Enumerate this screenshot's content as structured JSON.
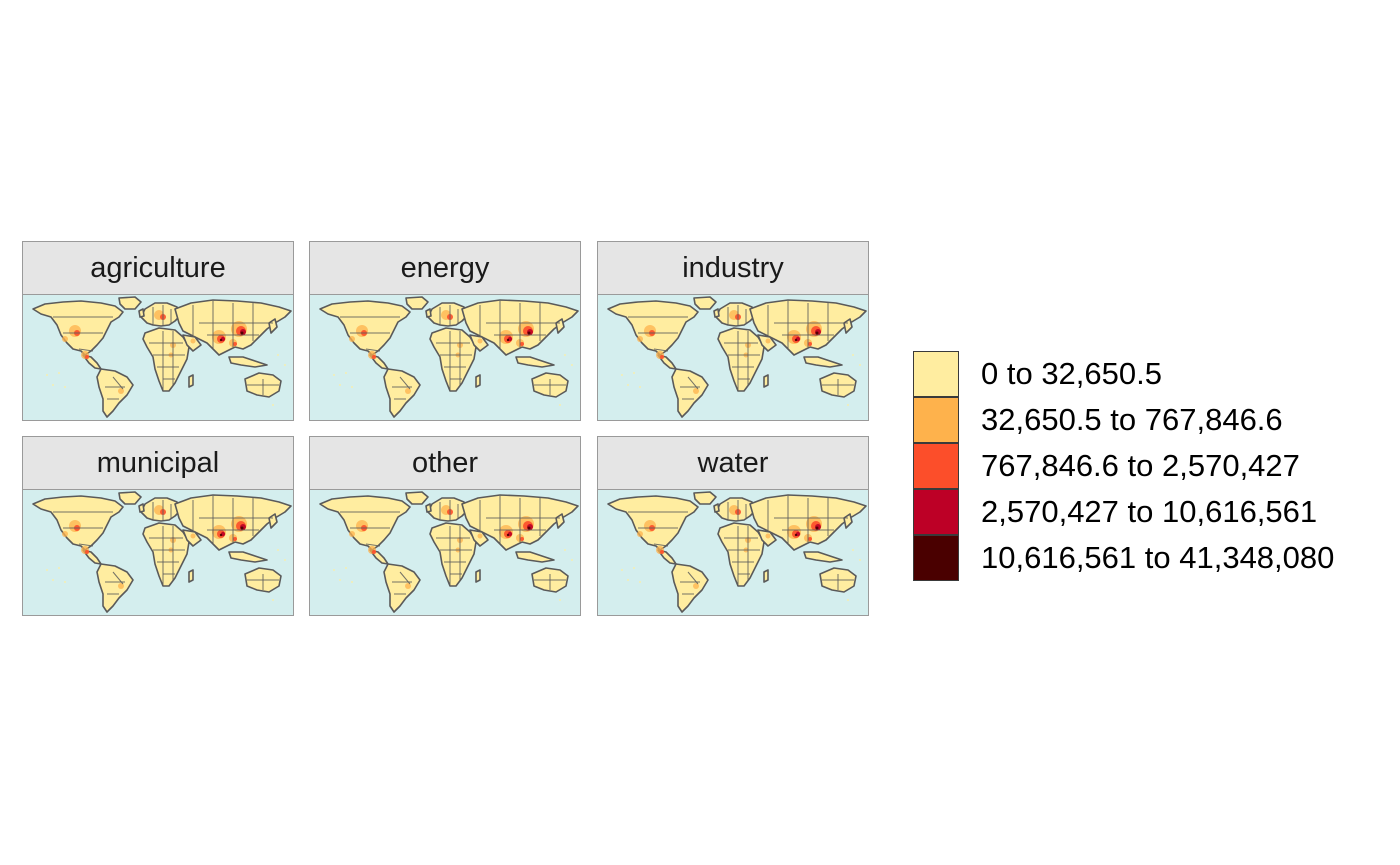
{
  "panels": [
    {
      "label": "agriculture"
    },
    {
      "label": "energy"
    },
    {
      "label": "industry"
    },
    {
      "label": "municipal"
    },
    {
      "label": "other"
    },
    {
      "label": "water"
    }
  ],
  "legend": {
    "items": [
      {
        "label": "0 to 32,650.5",
        "color": "#ffeda0"
      },
      {
        "label": "32,650.5 to 767,846.6",
        "color": "#feb24c"
      },
      {
        "label": "767,846.6 to 2,570,427",
        "color": "#fc4e2a"
      },
      {
        "label": "2,570,427 to 10,616,561",
        "color": "#bd0026"
      },
      {
        "label": "10,616,561 to 41,348,080",
        "color": "#4a0000"
      }
    ]
  },
  "colors": {
    "ocean": "#d4eeee",
    "land": "#ffeda0",
    "border": "#5a5a5a",
    "strip": "#e5e5e5"
  }
}
